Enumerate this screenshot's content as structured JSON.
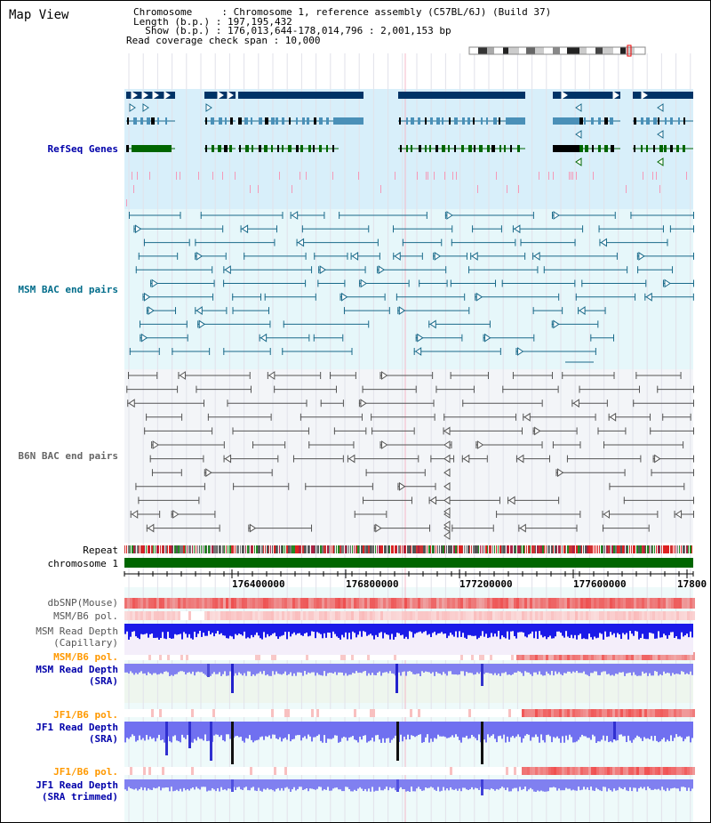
{
  "view": {
    "title": "Map View",
    "chromosome_row": "Chromosome     : Chromosome 1, reference assembly (C57BL/6J) (Build 37)",
    "length_row": "Length (b.p.) : 197,195,432",
    "show_row": "  Show (b.p.) : 176,013,644-178,014,796 : 2,001,153 bp",
    "coverage_row": "Read coverage check span : 10,000"
  },
  "tracks": {
    "refseq": "RefSeq Genes",
    "msm_bac": "MSM BAC end pairs",
    "b6n_bac": "B6N BAC end pairs",
    "repeat": "Repeat",
    "chromosome": "chromosome 1",
    "dbsnp": "dbSNP(Mouse)",
    "msm_pol": "MSM/B6 pol.",
    "msm_cap_1": "MSM Read Depth",
    "msm_cap_2": "(Capillary)",
    "msm_pol2": "MSM/B6 pol.",
    "msm_sra_1": "MSM Read Depth",
    "msm_sra_2": "(SRA)",
    "jf1_pol": "JF1/B6 pol.",
    "jf1_sra_1": "JF1 Read Depth",
    "jf1_sra_2": "(SRA)",
    "jf1_pol2": "JF1/B6 pol.",
    "jf1_trim_1": "JF1 Read Depth",
    "jf1_trim_2": "(SRA trimmed)"
  },
  "axis": {
    "ticks": [
      "176400000",
      "176800000",
      "177200000",
      "177600000",
      "17800"
    ]
  },
  "colors": {
    "refseq_dark": "#003366",
    "refseq_mid": "#4a90b8",
    "refseq_green": "#006600",
    "msm_bac": "#1a6a8a",
    "b6n_bac": "#555555",
    "chromosome": "#006600",
    "snp_red": "#ee3333",
    "depth_blue": "#0000ee",
    "label_blue": "#0000aa",
    "label_orange": "#ff9900"
  }
}
